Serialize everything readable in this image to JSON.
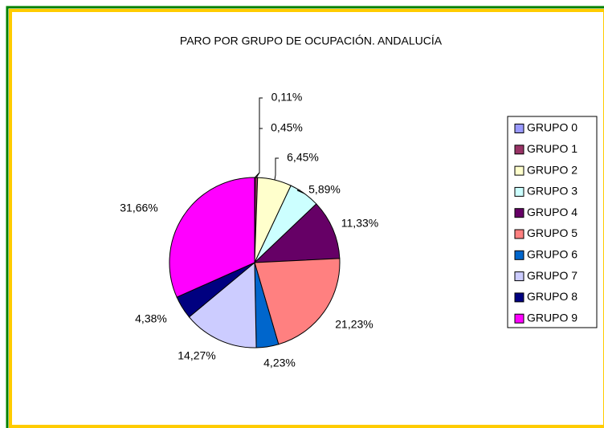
{
  "chart_data": {
    "type": "pie",
    "title": "PARO POR GRUPO DE OCUPACIÓN. ANDALUCÍA",
    "categories": [
      "GRUPO 0",
      "GRUPO 1",
      "GRUPO 2",
      "GRUPO 3",
      "GRUPO 4",
      "GRUPO 5",
      "GRUPO 6",
      "GRUPO 7",
      "GRUPO 8",
      "GRUPO 9"
    ],
    "values": [
      0.11,
      0.45,
      6.45,
      5.89,
      11.33,
      21.23,
      4.23,
      14.27,
      4.38,
      31.66
    ],
    "value_labels": [
      "0,11%",
      "0,45%",
      "6,45%",
      "5,89%",
      "11,33%",
      "21,23%",
      "4,23%",
      "14,27%",
      "4,38%",
      "31,66%"
    ],
    "colors": [
      "#9999FF",
      "#993366",
      "#FFFFCC",
      "#CCFFFF",
      "#660066",
      "#FF8080",
      "#0066CC",
      "#CCCCFF",
      "#000080",
      "#FF00FF"
    ],
    "legend": "right"
  }
}
